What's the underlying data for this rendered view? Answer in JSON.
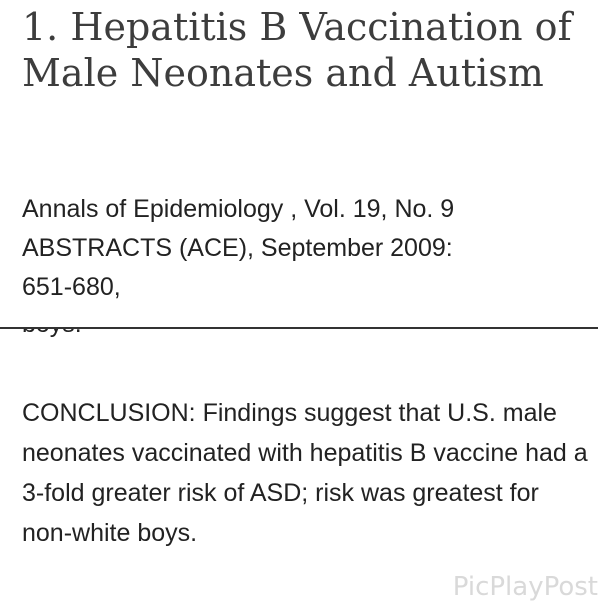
{
  "article": {
    "title": "1. Hepatitis B Vaccination of Male Neonates and Autism",
    "citation_line1": "Annals of Epidemiology , Vol. 19, No. 9",
    "citation_line2": "ABSTRACTS (ACE), September 2009:",
    "citation_line3": "651-680,"
  },
  "excerpt": {
    "cut_text": "boys.",
    "conclusion": "CONCLUSION: Findings suggest that U.S. male neonates vaccinated with hepatitis B vaccine had a 3-fold greater risk of ASD; risk was greatest for non-white boys."
  },
  "watermark": {
    "text": "PicPlayPost"
  }
}
